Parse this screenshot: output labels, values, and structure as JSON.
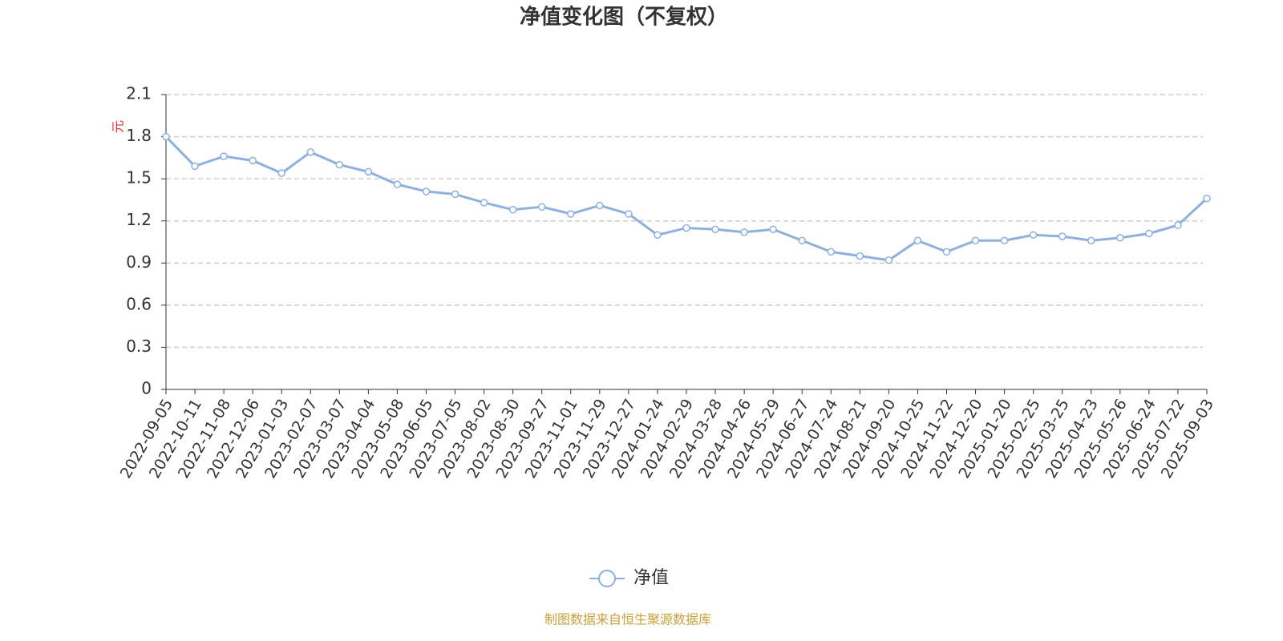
{
  "chart_data": {
    "type": "line",
    "title": "净值变化图（不复权）",
    "y_unit": "元",
    "source": "制图数据来自恒生聚源数据库",
    "x": [
      "2022-09-05",
      "2022-10-11",
      "2022-11-08",
      "2022-12-06",
      "2023-01-03",
      "2023-02-07",
      "2023-03-07",
      "2023-04-04",
      "2023-05-08",
      "2023-06-05",
      "2023-07-05",
      "2023-08-02",
      "2023-08-30",
      "2023-09-27",
      "2023-11-01",
      "2023-11-29",
      "2023-12-27",
      "2024-01-24",
      "2024-02-29",
      "2024-03-28",
      "2024-04-26",
      "2024-05-29",
      "2024-06-27",
      "2024-07-24",
      "2024-08-21",
      "2024-09-20",
      "2024-10-25",
      "2024-11-22",
      "2024-12-20",
      "2025-01-20",
      "2025-02-25",
      "2025-03-25",
      "2025-04-23",
      "2025-05-26",
      "2025-06-24",
      "2025-07-22",
      "2025-09-03"
    ],
    "series": [
      {
        "name": "净值",
        "color": "#8eb0dc",
        "values": [
          1.8,
          1.59,
          1.66,
          1.63,
          1.54,
          1.69,
          1.6,
          1.55,
          1.46,
          1.41,
          1.39,
          1.33,
          1.28,
          1.3,
          1.25,
          1.31,
          1.25,
          1.1,
          1.15,
          1.14,
          1.12,
          1.14,
          1.06,
          0.98,
          0.95,
          0.92,
          1.06,
          0.98,
          1.06,
          1.06,
          1.1,
          1.09,
          1.06,
          1.08,
          1.11,
          1.17,
          1.36
        ]
      }
    ],
    "ylim": [
      0,
      2.1
    ],
    "yticks": [
      0,
      0.3,
      0.6,
      0.9,
      1.2,
      1.5,
      1.8,
      2.1
    ],
    "grid": true,
    "legend": "bottom"
  }
}
